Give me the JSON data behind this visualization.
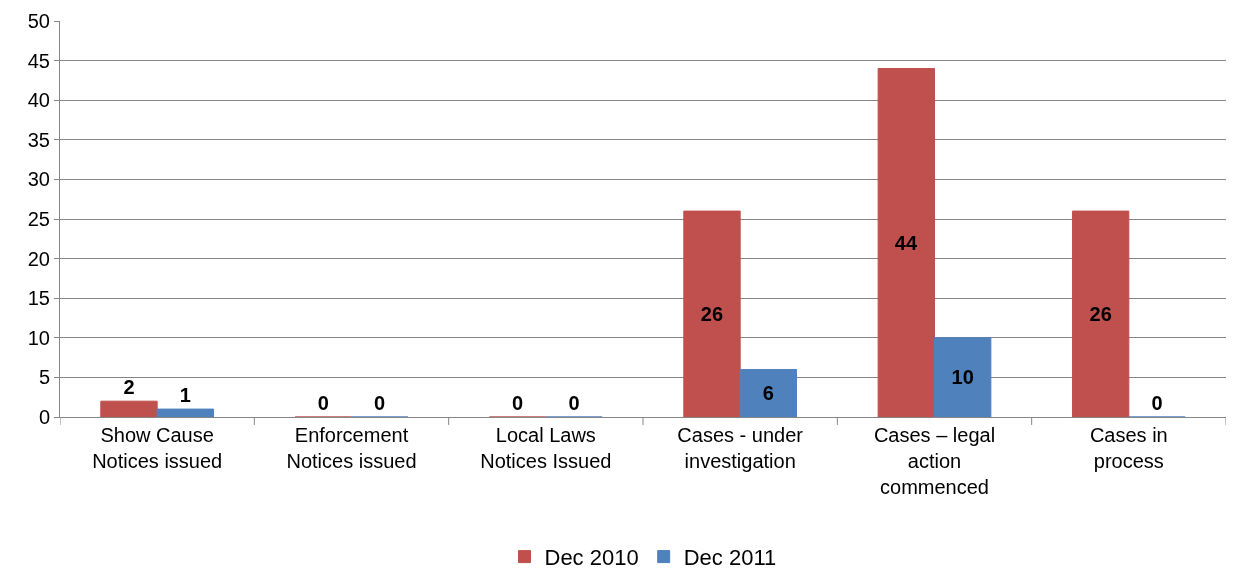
{
  "chart_data": {
    "type": "bar",
    "categories": [
      "Show Cause Notices issued",
      "Enforcement Notices issued",
      "Local Laws Notices Issued",
      "Cases - under investigation",
      "Cases – legal action commenced",
      "Cases in process"
    ],
    "series": [
      {
        "name": "Dec 2010",
        "color": "#c0504d",
        "values": [
          2,
          0,
          0,
          26,
          44,
          26
        ]
      },
      {
        "name": "Dec 2011",
        "color": "#4f81bd",
        "values": [
          1,
          0,
          0,
          6,
          10,
          0
        ]
      }
    ],
    "ylim": [
      0,
      50
    ],
    "yticks": [
      0,
      5,
      10,
      15,
      20,
      25,
      30,
      35,
      40,
      45,
      50
    ],
    "grid": "y",
    "legend": "bottom",
    "data_labels": true
  }
}
